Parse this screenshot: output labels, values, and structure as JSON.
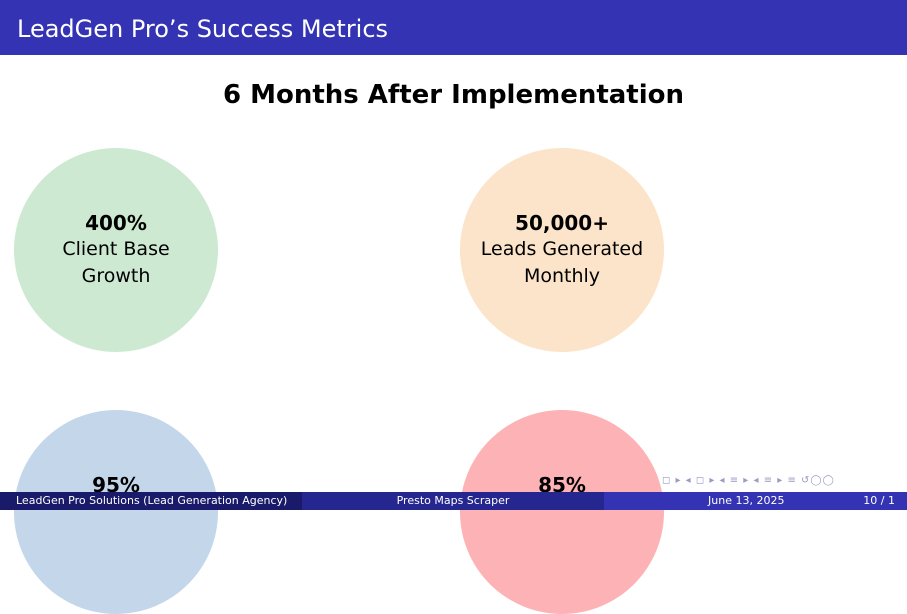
{
  "header": {
    "title": "LeadGen Pro’s Success Metrics"
  },
  "slide": {
    "subtitle": "6 Months After Implementation"
  },
  "metrics": [
    {
      "value": "400%",
      "label_line1": "Client Base",
      "label_line2": "Growth",
      "color": "#cde9d2"
    },
    {
      "value": "50,000+",
      "label_line1": "Leads Generated",
      "label_line2": "Monthly",
      "color": "#fbe4c9"
    },
    {
      "value": "95%",
      "color": "#c3d6ea"
    },
    {
      "value": "85%",
      "color": "#fdb2b5"
    }
  ],
  "navigation": {
    "symbols": "◻ ▸ ◂ ◻ ▸ ◂ ≡ ▸ ◂ ≡ ▸ ≡ ↺◯◯"
  },
  "footer": {
    "author": "LeadGen Pro Solutions  (Lead Generation Agency)",
    "title": "Presto Maps Scraper",
    "date": "June 13, 2025",
    "page": "10 / 1"
  }
}
